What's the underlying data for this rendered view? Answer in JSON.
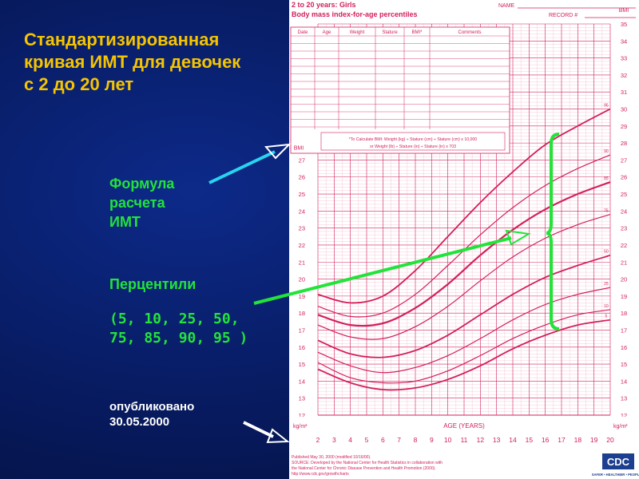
{
  "slide": {
    "title_lines": [
      "Стандартизированная",
      "кривая ИМТ для девочек",
      "с 2 до 20 лет"
    ],
    "formula_label_lines": [
      "Формула",
      "расчета",
      "ИМТ"
    ],
    "percentiles_label": "Перцентили",
    "percentiles_list_lines": [
      "(5, 10, 25, 50,",
      "75, 85, 90, 95 )"
    ],
    "published_lines": [
      "опубликовано",
      "30.05.2000"
    ],
    "colors": {
      "title": "#f5c400",
      "green": "#22e33a",
      "cyan": "#29d4f0",
      "white": "#ffffff",
      "chart_line": "#d2205a"
    }
  },
  "chart_data": {
    "type": "line",
    "header": {
      "line1": "2 to 20 years: Girls",
      "line2": "Body mass index-for-age percentiles",
      "name_label": "NAME",
      "record_label": "RECORD #"
    },
    "table_headers": [
      "Date",
      "Age",
      "Weight",
      "Stature",
      "BMI*",
      "Comments"
    ],
    "formula_lines": [
      "*To Calculate BMI: Weight (kg) ÷ Stature (cm) ÷ Stature (cm) x 10,000",
      "or Weight (lb) ÷ Stature (in) ÷ Stature (in) x 703"
    ],
    "left_axis_label": "BMI",
    "right_axis_label": "BMI",
    "unit_label": "kg/m²",
    "xlabel": "AGE (YEARS)",
    "x_ticks": [
      2,
      3,
      4,
      5,
      6,
      7,
      8,
      9,
      10,
      11,
      12,
      13,
      14,
      15,
      16,
      17,
      18,
      19,
      20
    ],
    "left_ticks": [
      12,
      13,
      14,
      15,
      16,
      17,
      18,
      19,
      20,
      21,
      22,
      23,
      24,
      25,
      26,
      27
    ],
    "right_ticks": [
      12,
      13,
      14,
      15,
      16,
      17,
      18,
      19,
      20,
      21,
      22,
      23,
      24,
      25,
      26,
      27,
      28,
      29,
      30,
      31,
      32,
      33,
      34,
      35
    ],
    "xlim": [
      2,
      20
    ],
    "ylim": [
      12,
      35
    ],
    "grid": true,
    "x": [
      2,
      4,
      6,
      8,
      10,
      12,
      14,
      16,
      18,
      20
    ],
    "series": [
      {
        "name": "5",
        "values": [
          14.7,
          13.9,
          13.5,
          13.6,
          14.1,
          14.9,
          15.9,
          16.7,
          17.3,
          17.6
        ]
      },
      {
        "name": "10",
        "values": [
          15.1,
          14.2,
          13.9,
          14.0,
          14.6,
          15.5,
          16.5,
          17.3,
          17.9,
          18.2
        ]
      },
      {
        "name": "25",
        "values": [
          15.7,
          14.9,
          14.5,
          14.8,
          15.5,
          16.5,
          17.6,
          18.5,
          19.1,
          19.5
        ]
      },
      {
        "name": "50",
        "values": [
          16.4,
          15.6,
          15.4,
          15.8,
          16.7,
          17.9,
          19.1,
          20.1,
          20.8,
          21.4
        ]
      },
      {
        "name": "75",
        "values": [
          17.3,
          16.6,
          16.5,
          17.2,
          18.4,
          19.9,
          21.3,
          22.4,
          23.2,
          23.8
        ]
      },
      {
        "name": "85",
        "values": [
          17.9,
          17.3,
          17.4,
          18.3,
          19.7,
          21.4,
          22.9,
          24.1,
          25.0,
          25.7
        ]
      },
      {
        "name": "90",
        "values": [
          18.4,
          17.8,
          18.0,
          19.1,
          20.8,
          22.6,
          24.2,
          25.5,
          26.5,
          27.3
        ]
      },
      {
        "name": "95",
        "values": [
          19.1,
          18.6,
          19.0,
          20.5,
          22.5,
          24.5,
          26.3,
          27.9,
          29.0,
          30.0
        ]
      }
    ],
    "footer_lines": [
      "Published May 30, 2000 (modified 10/16/00).",
      "SOURCE: Developed by the National Center for Health Statistics in collaboration with",
      "the National Center for Chronic Disease Prevention and Health Promotion (2000).",
      "http://www.cdc.gov/growthcharts"
    ],
    "logo_text": "CDC",
    "logo_tagline": "SAFER • HEALTHIER • PEOPLE™"
  }
}
